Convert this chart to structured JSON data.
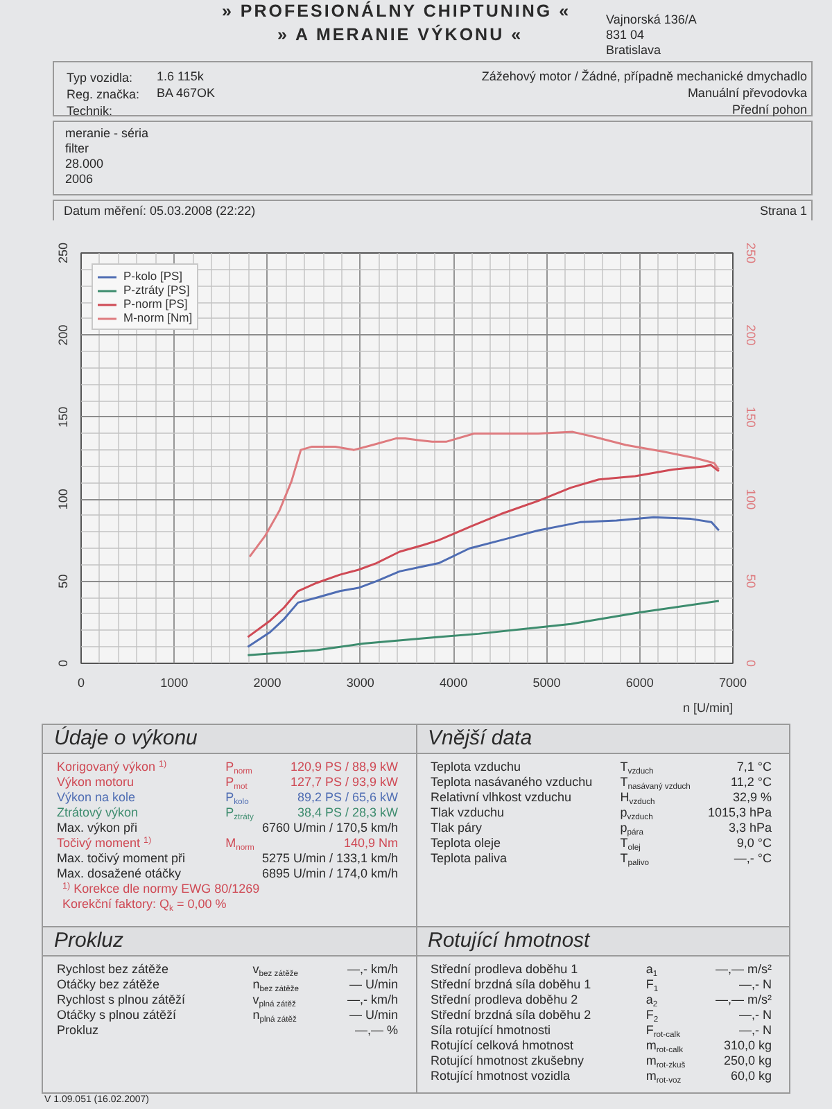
{
  "chart_data": {
    "type": "line",
    "xlabel": "n [U/min]",
    "xlim": [
      0,
      7000
    ],
    "xticks": [
      0,
      1000,
      2000,
      3000,
      4000,
      5000,
      6000,
      7000
    ],
    "ylim": [
      0,
      250
    ],
    "yticks": [
      0,
      50,
      100,
      150,
      200,
      250
    ],
    "y2lim": [
      0,
      250
    ],
    "y2ticks": [
      0,
      50,
      100,
      150,
      200,
      250
    ],
    "grid": true,
    "legend": "top left",
    "series": [
      {
        "name": "P-kolo [PS]",
        "color": "#4f6db3",
        "x": [
          1790,
          2030,
          2180,
          2330,
          2530,
          2780,
          2980,
          3170,
          3420,
          3670,
          3840,
          4170,
          4510,
          4910,
          5360,
          5750,
          6150,
          6550,
          6770,
          6850
        ],
        "values": [
          10,
          19,
          27,
          37,
          40,
          44,
          46,
          50,
          56,
          59,
          61,
          70,
          75,
          81,
          86,
          87,
          89,
          88,
          86,
          81
        ]
      },
      {
        "name": "P-ztráty [PS]",
        "color": "#3d8c6e",
        "x": [
          1790,
          2530,
          3030,
          3840,
          4270,
          5260,
          6000,
          6850
        ],
        "values": [
          5,
          8,
          12,
          16,
          18,
          24,
          31,
          38
        ]
      },
      {
        "name": "P-norm [PS]",
        "color": "#cf4a55",
        "x": [
          1790,
          2030,
          2180,
          2330,
          2530,
          2780,
          2980,
          3170,
          3420,
          3670,
          3840,
          4170,
          4510,
          4910,
          5260,
          5560,
          5950,
          6350,
          6700,
          6760,
          6850
        ],
        "values": [
          16,
          26,
          34,
          44,
          49,
          54,
          57,
          61,
          68,
          72,
          75,
          83,
          91,
          99,
          107,
          112,
          114,
          118,
          120,
          121,
          117
        ]
      },
      {
        "name": "M-norm [Nm]",
        "color": "#de7b7f",
        "axis": "y2",
        "x": [
          1810,
          1980,
          2130,
          2260,
          2360,
          2480,
          2730,
          2930,
          3130,
          3380,
          3480,
          3620,
          3770,
          3920,
          4220,
          4510,
          4910,
          5280,
          5510,
          5850,
          6250,
          6600,
          6800,
          6850
        ],
        "values": [
          65,
          78,
          93,
          111,
          130,
          132,
          132,
          130,
          133,
          137,
          137,
          136,
          135,
          135,
          140,
          140,
          140,
          141,
          138,
          133,
          129,
          125,
          122,
          118
        ]
      }
    ],
    "annotations": [
      "» PROFESIONÁLNY CHIPTUNING «",
      "» A MERANIE VÝKONU «",
      "Vajnorská 136/A",
      "831 04",
      "Bratislava",
      "Typ vozidla:",
      "1.6 115k",
      "Reg. značka:",
      "BA 467OK",
      "Technik:",
      "Zážehový motor / Žádné, případně mechanické dmychadlo",
      "Manuální převodovka",
      "Přední pohon",
      "meranie - séria",
      "filter",
      "28.000",
      "2006",
      "Datum měření: 05.03.2008 (22:22)",
      "Strana 1",
      "Údaje o výkonu",
      "Korigovaný výkon $^{1)}$",
      "P$_{norm}$",
      "120,9 PS / 88,9 kW",
      "Výkon motoru",
      "P$_{mot}$",
      "127,7 PS / 93,9 kW",
      "Výkon na kole",
      "P$_{kolo}$",
      "89,2 PS / 65,6 kW",
      "Ztrátový výkon",
      "P$_{ztráty}$",
      "38,4 PS / 28,3 kW",
      "Max. výkon při",
      "6760 U/min / 170,5 km/h",
      "Točivý moment $^{1)}$",
      "M$_{norm}$",
      "140,9 Nm",
      "Max. točivý moment při",
      "5275 U/min / 133,1 km/h",
      "Max. dosažené otáčky",
      "6895 U/min / 174,0 km/h",
      "$^{1)}$ Korekce dle normy EWG 80/1269",
      "Korekční faktory: Q$_{k}$ = 0,00 %",
      "Vnější data",
      "Teplota vzduchu",
      "T$_{vzduch}$",
      "7,1 °C",
      "Teplota nasávaného vzduchu",
      "T$_{nasávaný vzduch}$",
      "11,2 °C",
      "Relativní vlhkost vzduchu",
      "H$_{vzduch}$",
      "32,9 %",
      "Tlak vzduchu",
      "p$_{vzduch}$",
      "1015,3 hPa",
      "Tlak páry",
      "p$_{pára}$",
      "3,3 hPa",
      "Teplota oleje",
      "T$_{olej}$",
      "9,0 °C",
      "Teplota paliva",
      "T$_{palivo}$",
      "—,- °C",
      "Prokluz",
      "Rychlost bez zátěže",
      "v$_{bez zátěže}$",
      "—,- km/h",
      "Otáčky bez zátěže",
      "n$_{bez zátěže}$",
      "— U/min",
      "Rychlost s plnou zátěží",
      "v$_{plná zátěž}$",
      "—,- km/h",
      "Otáčky s plnou zátěží",
      "n$_{plná zátěž}$",
      "— U/min",
      "Prokluz",
      "—,— %",
      "Rotující hmotnost",
      "Střední prodleva doběhu 1",
      "a$_{1}$",
      "—,— m/s²",
      "Střední brzdná síla doběhu 1",
      "F$_{1}$",
      "—,- N",
      "Střední prodleva doběhu 2",
      "a$_{2}$",
      "—,— m/s²",
      "Střední brzdná síla doběhu 2",
      "F$_{2}$",
      "—,- N",
      "Síla rotující hmotnosti",
      "F$_{rot-calk}$",
      "—,- N",
      "Rotující celková hmotnost",
      "m$_{rot-calk}$",
      "310,0 kg",
      "Rotující hmotnost zkušebny",
      "m$_{rot-zkuš}$",
      "250,0 kg",
      "Rotující hmotnost vozidla",
      "m$_{rot-voz}$",
      "60,0 kg",
      "V 1.09.051 (16.02.2007)"
    ]
  }
}
